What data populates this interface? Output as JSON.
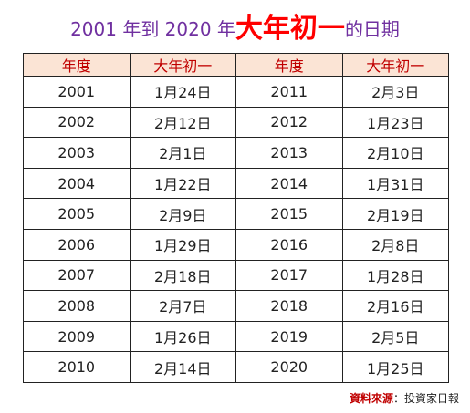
{
  "title": {
    "prefix": "2001 年到 2020 年",
    "highlight": "大年初一",
    "suffix": "的日期",
    "colors": {
      "main": "#7030a0",
      "highlight": "#ff0000"
    }
  },
  "table": {
    "headers": [
      "年度",
      "大年初一",
      "年度",
      "大年初一"
    ],
    "header_color": "#c00000",
    "header_bg": "#fbe4d5",
    "rows": [
      [
        "2001",
        "1月24日",
        "2011",
        "2月3日"
      ],
      [
        "2002",
        "2月12日",
        "2012",
        "1月23日"
      ],
      [
        "2003",
        "2月1日",
        "2013",
        "2月10日"
      ],
      [
        "2004",
        "1月22日",
        "2014",
        "1月31日"
      ],
      [
        "2005",
        "2月9日",
        "2015",
        "2月19日"
      ],
      [
        "2006",
        "1月29日",
        "2016",
        "2月8日"
      ],
      [
        "2007",
        "2月18日",
        "2017",
        "1月28日"
      ],
      [
        "2008",
        "2月7日",
        "2018",
        "2月16日"
      ],
      [
        "2009",
        "1月26日",
        "2019",
        "2月5日"
      ],
      [
        "2010",
        "2月14日",
        "2020",
        "1月25日"
      ]
    ]
  },
  "source": {
    "label": "資料來源",
    "separator": "：",
    "value": "投資家日報"
  }
}
